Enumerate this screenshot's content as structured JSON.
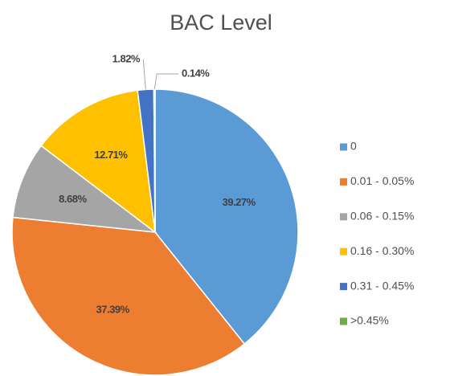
{
  "chart_data": {
    "type": "pie",
    "title": "BAC Level",
    "categories": [
      "0",
      "0.01 - 0.05%",
      "0.06 - 0.15%",
      "0.16 - 0.30%",
      "0.31 - 0.45%",
      ">0.45%"
    ],
    "values": [
      39.27,
      37.39,
      8.68,
      12.71,
      1.82,
      0.14
    ],
    "value_labels": [
      "39.27%",
      "37.39%",
      "8.68%",
      "12.71%",
      "1.82%",
      "0.14%"
    ],
    "colors": [
      "#5b9bd5",
      "#ed7d31",
      "#a5a5a5",
      "#ffc000",
      "#4472c4",
      "#70ad47"
    ],
    "legend": "right"
  }
}
